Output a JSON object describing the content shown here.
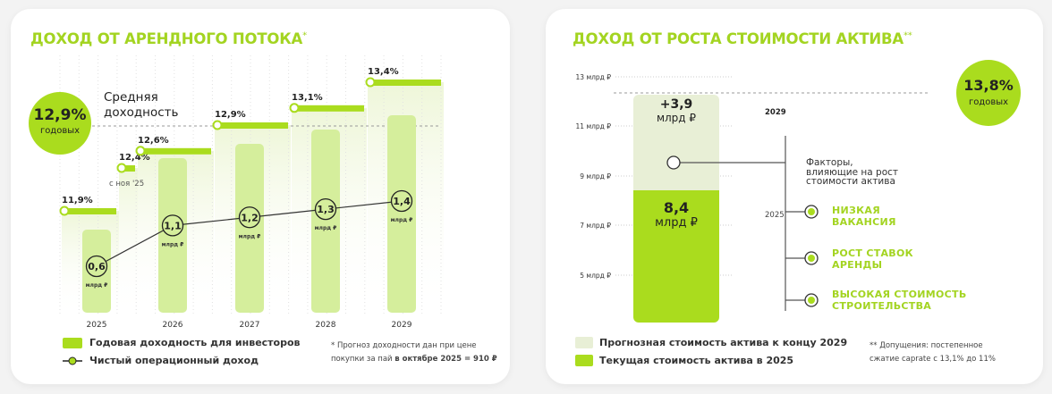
{
  "colors": {
    "accent": "#aadc1e",
    "bar_light": "#d5ee9c",
    "forecast": "#e8efd6",
    "text_green": "#a3d421"
  },
  "left": {
    "title": "ДОХОД ОТ АРЕНДНОГО ПОТОКА",
    "title_mark": "*",
    "avg_value": "12,9%",
    "avg_unit": "годовых",
    "avg_label_1": "Средняя",
    "avg_label_2": "доходность",
    "nov_note": "с ноя '25",
    "legend_bars": "Годовая доходность для инвесторов",
    "legend_line": "Чистый операционный доход",
    "footnote_1": "* Прогноз доходности дан при цене",
    "footnote_2": "покупки за пай ",
    "footnote_bold": "в октябре 2025 = 910 ₽"
  },
  "chart_data": [
    {
      "type": "bar",
      "categories": [
        "2025",
        "2026",
        "2027",
        "2028",
        "2029"
      ],
      "series": [
        {
          "name": "Чистый операционный доход",
          "values": [
            0.6,
            1.1,
            1.2,
            1.3,
            1.4
          ],
          "labels": [
            "0,6",
            "1,1",
            "1,2",
            "1,3",
            "1,4"
          ],
          "unit": "млрд ₽"
        }
      ],
      "yield_steps": [
        {
          "label": "11,9%",
          "value": 11.9
        },
        {
          "label": "12,4%",
          "value": 12.4
        },
        {
          "label": "12,6%",
          "value": 12.6
        },
        {
          "label": "12,9%",
          "value": 12.9
        },
        {
          "label": "13,1%",
          "value": 13.1
        },
        {
          "label": "13,4%",
          "value": 13.4
        }
      ],
      "average": 12.9
    },
    {
      "type": "bar",
      "yticks": [
        "13 млрд ₽",
        "11 млрд ₽",
        "9 млрд ₽",
        "7 млрд ₽",
        "5 млрд ₽"
      ],
      "current": {
        "year": "2025",
        "value": 8.4,
        "label": "8,4",
        "unit": "млрд ₽"
      },
      "growth": {
        "year": "2029",
        "value": 3.9,
        "label": "+3,9",
        "unit": "млрд ₽"
      }
    }
  ],
  "right": {
    "title": "ДОХОД ОТ РОСТА СТОИМОСТИ АКТИВА",
    "title_mark": "**",
    "rate_value": "13,8%",
    "rate_unit": "годовых",
    "factors_title_1": "Факторы,",
    "factors_title_2": "влияющие на рост",
    "factors_title_3": "стоимости актива",
    "factors": [
      [
        "НИЗКАЯ",
        "ВАКАНСИЯ"
      ],
      [
        "РОСТ СТАВОК",
        "АРЕНДЫ"
      ],
      [
        "ВЫСОКАЯ СТОИМОСТЬ",
        "СТРОИТЕЛЬСТВА"
      ]
    ],
    "legend_forecast": "Прогнозная стоимость актива к концу 2029",
    "legend_current": "Текущая стоимость актива в 2025",
    "footnote_1": "** Допущения: постепенное",
    "footnote_2": "сжатие caprate с 13,1% до 11%"
  }
}
